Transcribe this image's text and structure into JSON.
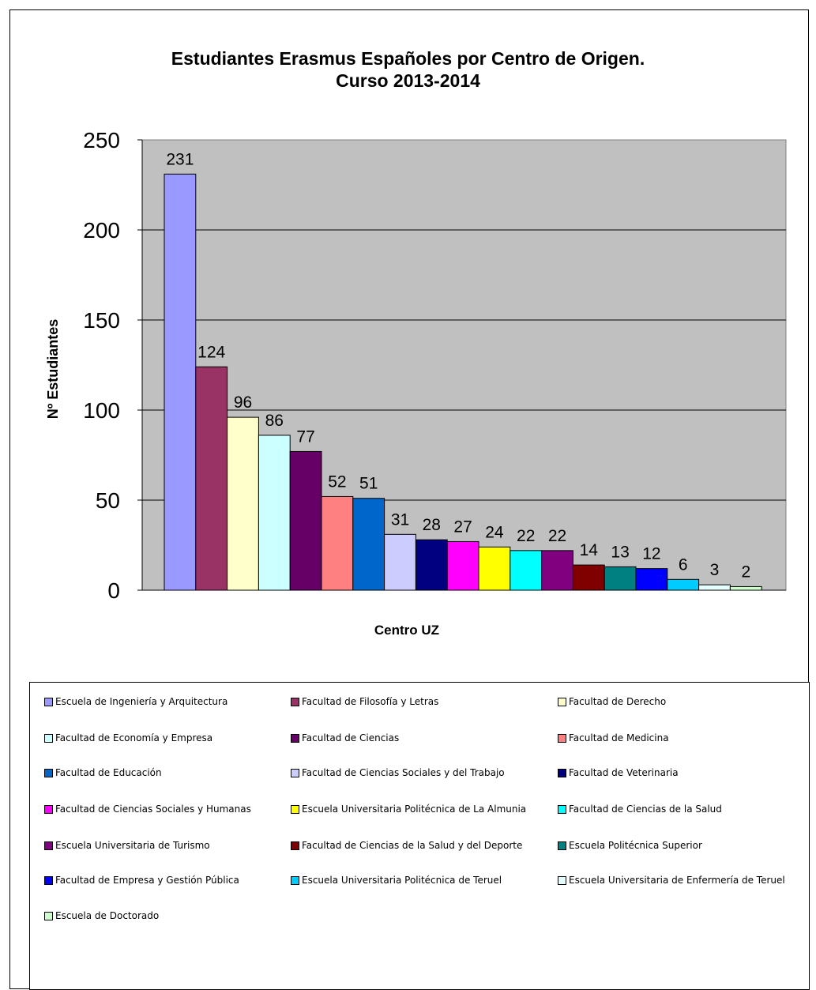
{
  "chart_data": {
    "type": "bar",
    "title": [
      "Estudiantes Erasmus Españoles por Centro de Origen.",
      "Curso 2013-2014"
    ],
    "xlabel": "Centro UZ",
    "ylabel": "Nº Estudiantes",
    "ylim": [
      0,
      250
    ],
    "yticks": [
      "0",
      "50",
      "100",
      "150",
      "200",
      "250"
    ],
    "grid": true,
    "legend_position": "bottom",
    "categories": [
      "Escuela de Ingeniería y Arquitectura",
      "Facultad de Filosofía y Letras",
      "Facultad de Derecho",
      "Facultad de Economía y Empresa",
      "Facultad de Ciencias",
      "Facultad de Medicina",
      "Facultad de Educación",
      "Facultad de Ciencias Sociales y del Trabajo",
      "Facultad de Veterinaria",
      "Facultad de Ciencias Sociales y Humanas",
      "Escuela Universitaria Politécnica de La Almunia",
      "Facultad de Ciencias de la Salud",
      "Escuela Universitaria de Turismo",
      "Facultad de Ciencias de la Salud y del Deporte",
      "Escuela Politécnica Superior",
      "Facultad de Empresa y Gestión Pública",
      "Escuela Universitaria Politécnica de Teruel",
      "Escuela Universitaria de Enfermería de Teruel",
      "Escuela de Doctorado"
    ],
    "values": [
      231,
      124,
      96,
      86,
      77,
      52,
      51,
      31,
      28,
      27,
      24,
      22,
      22,
      14,
      13,
      12,
      6,
      3,
      2
    ],
    "colors": [
      "#9999FF",
      "#993366",
      "#FFFFCC",
      "#CCFFFF",
      "#660066",
      "#FF8080",
      "#0066CC",
      "#CCCCFF",
      "#000080",
      "#FF00FF",
      "#FFFF00",
      "#00FFFF",
      "#800080",
      "#800000",
      "#008080",
      "#0000FF",
      "#00CCFF",
      "#E6FFFF",
      "#CCFFCC"
    ],
    "plot_background": "#C0C0C0"
  }
}
